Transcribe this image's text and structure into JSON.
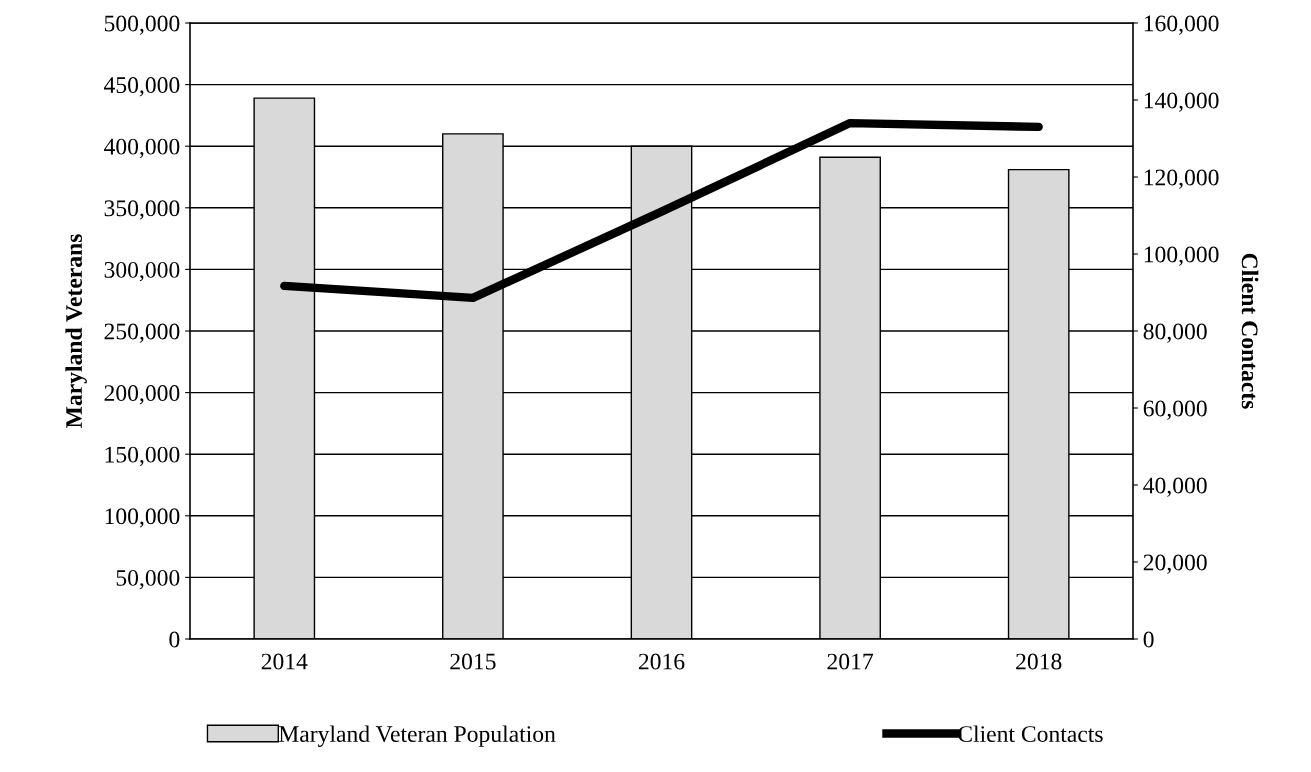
{
  "chart_data": {
    "type": "bar",
    "categories": [
      "2014",
      "2015",
      "2016",
      "2017",
      "2018"
    ],
    "series": [
      {
        "name": "Maryland Veteran Population",
        "color": "#d9d9d9",
        "values": [
          439000,
          410000,
          400000,
          391000,
          381000
        ]
      },
      {
        "name": "Client Contacts",
        "type": "line",
        "axis": "y2",
        "color": "#000000",
        "values": [
          91700,
          88600,
          111000,
          134000,
          133000
        ]
      }
    ],
    "ylabel": "Maryland Veterans",
    "y2label": "Client Contacts",
    "ylim": [
      0,
      500000
    ],
    "yticks": [
      {
        "value": 0,
        "label": "0"
      },
      {
        "value": 50000,
        "label": "50,000"
      },
      {
        "value": 100000,
        "label": "100,000"
      },
      {
        "value": 150000,
        "label": "150,000"
      },
      {
        "value": 200000,
        "label": "200,000"
      },
      {
        "value": 250000,
        "label": "250,000"
      },
      {
        "value": 300000,
        "label": "300,000"
      },
      {
        "value": 350000,
        "label": "350,000"
      },
      {
        "value": 400000,
        "label": "400,000"
      },
      {
        "value": 450000,
        "label": "450,000"
      },
      {
        "value": 500000,
        "label": "500,000"
      }
    ],
    "y2lim": [
      0,
      160000
    ],
    "y2ticks": [
      {
        "value": 0,
        "label": "0"
      },
      {
        "value": 20000,
        "label": "20,000"
      },
      {
        "value": 40000,
        "label": "40,000"
      },
      {
        "value": 60000,
        "label": "60,000"
      },
      {
        "value": 80000,
        "label": "80,000"
      },
      {
        "value": 100000,
        "label": "100,000"
      },
      {
        "value": 120000,
        "label": "120,000"
      },
      {
        "value": 140000,
        "label": "140,000"
      },
      {
        "value": 160000,
        "label": "160,000"
      }
    ],
    "grid": "y",
    "legend": "bottom",
    "marker": "none",
    "line_style": "solid"
  }
}
